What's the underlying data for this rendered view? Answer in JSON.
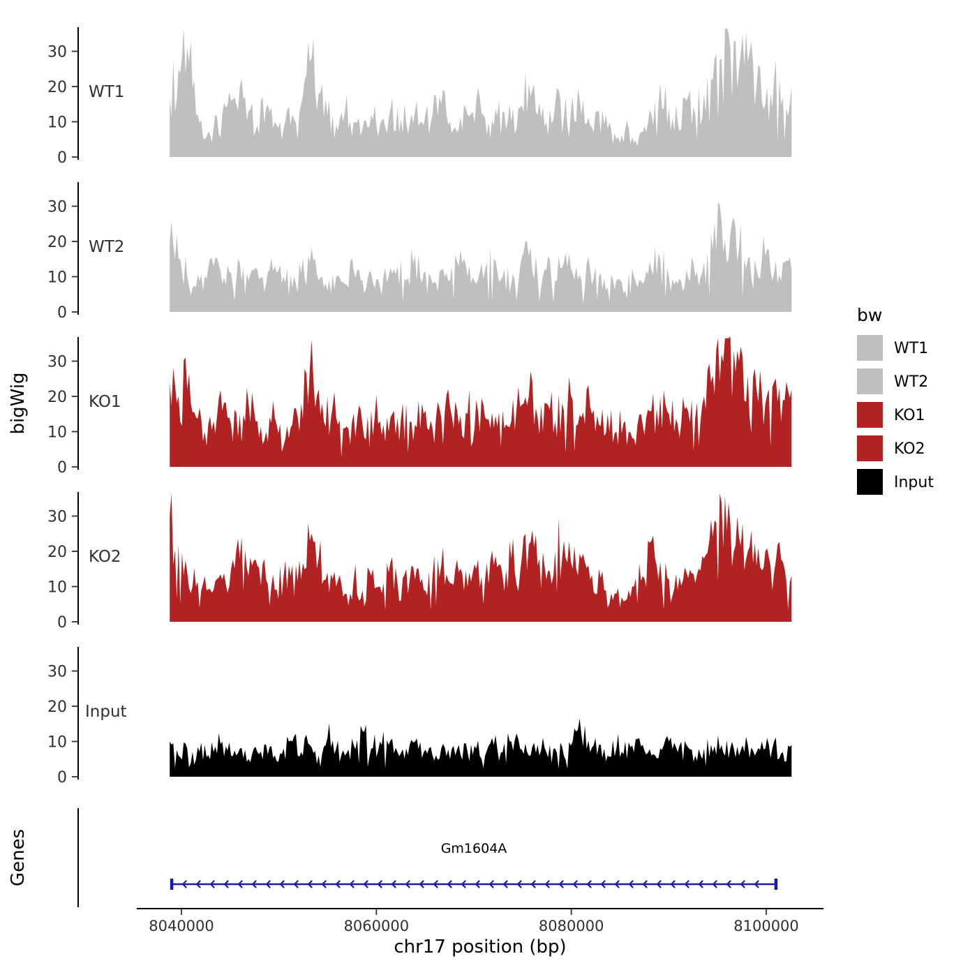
{
  "figure": {
    "background": "#ffffff"
  },
  "y_axis": {
    "label": "bigWig",
    "ticks": [
      0,
      10,
      20,
      30
    ]
  },
  "x_axis": {
    "label": "chr17 position (bp)",
    "ticks": [
      8040000,
      8060000,
      8080000,
      8100000
    ]
  },
  "genes_panel": {
    "label": "Genes"
  },
  "legend": {
    "title": "bw",
    "entries": [
      {
        "label": "WT1",
        "color": "#bfbfbf"
      },
      {
        "label": "WT2",
        "color": "#bfbfbf"
      },
      {
        "label": "KO1",
        "color": "#b22222"
      },
      {
        "label": "KO2",
        "color": "#b22222"
      },
      {
        "label": "Input",
        "color": "#000000"
      }
    ]
  },
  "chart_data": {
    "type": "area",
    "title": "",
    "xlabel": "chr17 position (bp)",
    "ylabel": "bigWig",
    "x_range_bp": [
      8038800,
      8102600
    ],
    "x_ticks_bp": [
      8040000,
      8060000,
      8080000,
      8100000
    ],
    "ylim": [
      0,
      37
    ],
    "y_ticks": [
      0,
      10,
      20,
      30
    ],
    "tracks": [
      {
        "name": "WT1",
        "color": "#bfbfbf",
        "max": 31,
        "envelope": [
          17,
          25,
          31,
          12,
          5,
          8,
          12,
          16,
          20,
          13,
          9,
          14,
          10,
          8,
          12,
          15,
          27,
          18,
          12,
          9,
          13,
          10,
          8,
          12,
          9,
          11,
          14,
          10,
          13,
          9,
          12,
          15,
          10,
          8,
          12,
          16,
          11,
          9,
          13,
          10,
          14,
          21,
          12,
          10,
          15,
          11,
          17,
          12,
          9,
          13,
          8,
          5,
          8,
          4,
          7,
          12,
          21,
          14,
          10,
          16,
          12,
          18,
          22,
          28,
          31,
          25,
          27,
          20,
          15,
          22,
          17,
          20
        ]
      },
      {
        "name": "WT2",
        "color": "#bfbfbf",
        "max": 26,
        "envelope": [
          20,
          15,
          10,
          7,
          10,
          13,
          8,
          11,
          14,
          9,
          12,
          8,
          13,
          10,
          7,
          11,
          14,
          9,
          6,
          10,
          8,
          12,
          9,
          11,
          7,
          10,
          13,
          9,
          16,
          11,
          8,
          12,
          9,
          13,
          10,
          8,
          12,
          15,
          10,
          8,
          13,
          16,
          10,
          12,
          9,
          14,
          11,
          9,
          12,
          10,
          7,
          9,
          6,
          10,
          8,
          12,
          15,
          10,
          8,
          12,
          10,
          14,
          18,
          26,
          22,
          18,
          15,
          12,
          16,
          11,
          14,
          12
        ]
      },
      {
        "name": "KO1",
        "color": "#b22222",
        "max": 37,
        "envelope": [
          24,
          20,
          22,
          14,
          10,
          13,
          16,
          12,
          15,
          18,
          13,
          10,
          14,
          6,
          12,
          18,
          28,
          22,
          20,
          14,
          11,
          15,
          12,
          16,
          13,
          10,
          14,
          18,
          12,
          15,
          11,
          14,
          17,
          12,
          15,
          19,
          14,
          11,
          16,
          13,
          17,
          20,
          14,
          18,
          13,
          16,
          19,
          14,
          17,
          12,
          15,
          10,
          13,
          8,
          12,
          16,
          20,
          15,
          12,
          17,
          14,
          20,
          26,
          32,
          37,
          30,
          26,
          22,
          18,
          24,
          19,
          22
        ]
      },
      {
        "name": "KO2",
        "color": "#b22222",
        "max": 34,
        "envelope": [
          30,
          22,
          14,
          10,
          13,
          9,
          12,
          15,
          18,
          13,
          16,
          12,
          9,
          13,
          16,
          12,
          23,
          18,
          14,
          10,
          8,
          12,
          9,
          13,
          10,
          14,
          11,
          15,
          12,
          9,
          13,
          16,
          11,
          14,
          10,
          15,
          12,
          16,
          13,
          18,
          14,
          22,
          16,
          12,
          20,
          23,
          15,
          18,
          12,
          15,
          4,
          8,
          6,
          10,
          13,
          23,
          17,
          12,
          9,
          14,
          11,
          18,
          24,
          34,
          28,
          24,
          20,
          16,
          20,
          14,
          17,
          13
        ]
      },
      {
        "name": "Input",
        "color": "#000000",
        "max": 13,
        "envelope": [
          10,
          6,
          8,
          5,
          9,
          7,
          10,
          6,
          8,
          5,
          7,
          9,
          6,
          8,
          10,
          7,
          9,
          6,
          11,
          8,
          6,
          9,
          13,
          8,
          10,
          9,
          7,
          8,
          10,
          7,
          6,
          8,
          5,
          9,
          7,
          8,
          6,
          9,
          7,
          10,
          8,
          6,
          9,
          7,
          8,
          6,
          10,
          12,
          7,
          9,
          6,
          8,
          10,
          7,
          9,
          6,
          8,
          10,
          7,
          9,
          6,
          8,
          7,
          9,
          8,
          6,
          9,
          7,
          8,
          10,
          7,
          9
        ]
      }
    ],
    "gene": {
      "name": "Gm1604A",
      "chrom": "chr17",
      "start": 8039000,
      "end": 8101000,
      "strand": "-",
      "color": "#1a1aa6"
    }
  }
}
